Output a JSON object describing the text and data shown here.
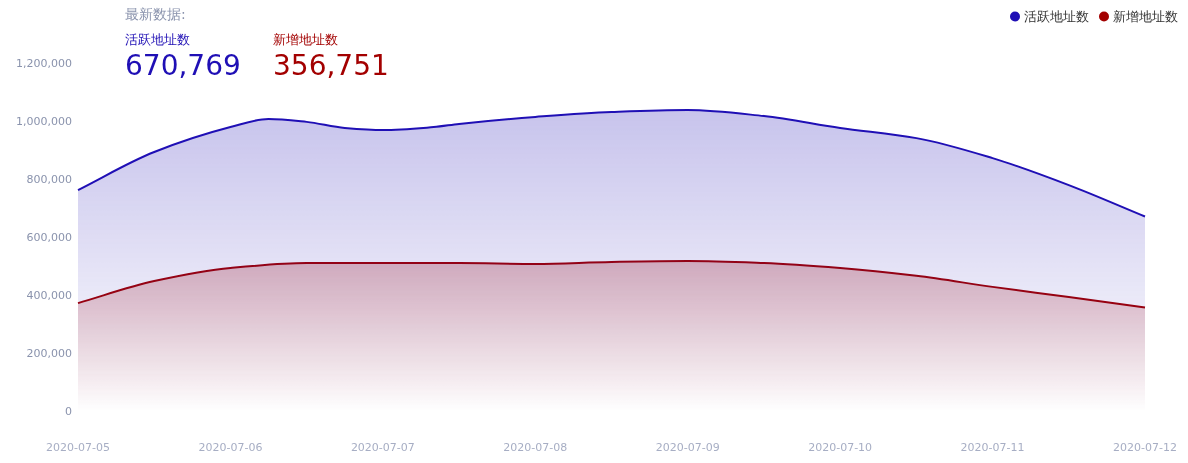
{
  "chart_data": {
    "type": "area",
    "annotations": [
      "最新数据:",
      "活跃地址数",
      "670,769",
      "新增地址数",
      "356,751"
    ],
    "series": [
      {
        "name": "活跃地址数",
        "color": "#1f0fb5",
        "x": [
          "2020-07-05T00:00",
          "2020-07-05T12:00",
          "2020-07-06T00:00",
          "2020-07-06T06:00",
          "2020-07-06T12:00",
          "2020-07-06T18:00",
          "2020-07-07T00:00",
          "2020-07-07T08:00",
          "2020-07-07T12:00",
          "2020-07-08T00:00",
          "2020-07-08T12:00",
          "2020-07-09T00:00",
          "2020-07-09T12:00",
          "2020-07-10T00:00",
          "2020-07-10T12:00",
          "2020-07-11T00:00",
          "2020-07-11T12:00",
          "2020-07-12T00:00"
        ],
        "values": [
          762000,
          893000,
          979000,
          1007000,
          997000,
          976000,
          969000,
          979000,
          990000,
          1014000,
          1031000,
          1038000,
          1017000,
          976000,
          941000,
          872000,
          779000,
          670769
        ]
      },
      {
        "name": "新增地址数",
        "color": "#a30000",
        "x": [
          "2020-07-05T00:00",
          "2020-07-05T12:00",
          "2020-07-06T00:00",
          "2020-07-06T12:00",
          "2020-07-07T00:00",
          "2020-07-07T12:00",
          "2020-07-08T00:00",
          "2020-07-08T12:00",
          "2020-07-09T00:00",
          "2020-07-09T12:00",
          "2020-07-10T00:00",
          "2020-07-10T12:00",
          "2020-07-11T00:00",
          "2020-07-11T12:00",
          "2020-07-12T00:00"
        ],
        "values": [
          372000,
          448000,
          493000,
          510000,
          510000,
          510000,
          507000,
          514000,
          517000,
          510000,
          493000,
          466000,
          428000,
          393000,
          356751
        ]
      }
    ],
    "xlim": [
      "2020-07-05",
      "2020-07-12"
    ],
    "xticks": [
      "2020-07-05",
      "2020-07-06",
      "2020-07-07",
      "2020-07-08",
      "2020-07-09",
      "2020-07-10",
      "2020-07-11",
      "2020-07-12"
    ],
    "ylim": [
      0,
      1200000
    ],
    "yticks": [
      {
        "value": 0,
        "label": "0"
      },
      {
        "value": 200000,
        "label": "200,000"
      },
      {
        "value": 400000,
        "label": "400,000"
      },
      {
        "value": 600000,
        "label": "600,000"
      },
      {
        "value": 800000,
        "label": "800,000"
      },
      {
        "value": 1000000,
        "label": "1,000,000"
      },
      {
        "value": 1200000,
        "label": "1,200,000"
      }
    ],
    "grid": false,
    "legend": "top right"
  }
}
